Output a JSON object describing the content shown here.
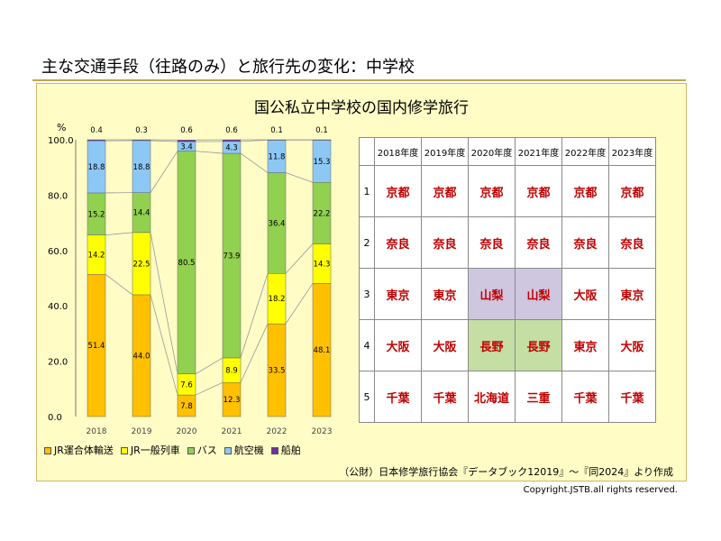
{
  "header": {
    "title": "主な交通手段（往路のみ）と旅行先の変化：中学校"
  },
  "panel": {
    "chart_title": "国公私立中学校の国内修学旅行",
    "source": "（公財）日本修学旅行協会『データブック12019』～『同2024』より作成"
  },
  "footer": {
    "copyright": "Copyright.JSTB.all rights reserved."
  },
  "colors": {
    "jr_charter": "#ffc000",
    "jr_regular": "#ffff00",
    "bus": "#92d050",
    "air": "#8dc8f5",
    "ship": "#7030a0",
    "rank_text": "#c00000",
    "highlight_purple": "#cfc6e0",
    "highlight_green": "#c4dea3"
  },
  "chart_data": {
    "type": "bar",
    "stacked": true,
    "title": "",
    "xlabel": "",
    "ylabel": "%",
    "ylim": [
      0,
      100
    ],
    "yticks": [
      "0.0",
      "20.0",
      "40.0",
      "60.0",
      "80.0",
      "100.0"
    ],
    "categories": [
      "2018",
      "2019",
      "2020",
      "2021",
      "2022",
      "2023"
    ],
    "series": [
      {
        "name": "JR運合体輸送",
        "color": "#ffc000",
        "values": [
          51.4,
          44.0,
          7.8,
          12.3,
          33.5,
          48.1
        ],
        "labels": [
          "51.4",
          "44.0",
          "7.8",
          "12.3",
          "33.5",
          "48.1"
        ]
      },
      {
        "name": "JR一般列車",
        "color": "#ffff00",
        "values": [
          14.2,
          22.5,
          7.6,
          8.9,
          18.2,
          14.3
        ],
        "labels": [
          "14.2",
          "22.5",
          "7.6",
          "8.9",
          "18.2",
          "14.3"
        ]
      },
      {
        "name": "バス",
        "color": "#92d050",
        "values": [
          15.2,
          14.4,
          80.5,
          73.9,
          36.4,
          22.2
        ],
        "labels": [
          "15.2",
          "14.4",
          "80.5",
          "73.9",
          "36.4",
          "22.2"
        ]
      },
      {
        "name": "航空機",
        "color": "#8dc8f5",
        "values": [
          18.8,
          18.8,
          3.4,
          4.3,
          11.8,
          15.3
        ],
        "labels": [
          "18.8",
          "18.8",
          "3.4",
          "4.3",
          "11.8",
          "15.3"
        ]
      },
      {
        "name": "船舶",
        "color": "#7030a0",
        "values": [
          0.4,
          0.3,
          0.6,
          0.6,
          0.1,
          0.1
        ],
        "labels": [
          "0.4",
          "0.3",
          "0.6",
          "0.6",
          "0.1",
          "0.1"
        ]
      }
    ],
    "legend_position": "bottom",
    "grid": false
  },
  "ranking": {
    "years": [
      "2018年度",
      "2019年度",
      "2020年度",
      "2021年度",
      "2022年度",
      "2023年度"
    ],
    "rows": [
      {
        "rank": "1",
        "cells": [
          "京都",
          "京都",
          "京都",
          "京都",
          "京都",
          "京都"
        ]
      },
      {
        "rank": "2",
        "cells": [
          "奈良",
          "奈良",
          "奈良",
          "奈良",
          "奈良",
          "奈良"
        ]
      },
      {
        "rank": "3",
        "cells": [
          "東京",
          "東京",
          "山梨",
          "山梨",
          "大阪",
          "東京"
        ]
      },
      {
        "rank": "4",
        "cells": [
          "大阪",
          "大阪",
          "長野",
          "長野",
          "東京",
          "大阪"
        ]
      },
      {
        "rank": "5",
        "cells": [
          "千葉",
          "千葉",
          "北海道",
          "三重",
          "千葉",
          "千葉"
        ]
      }
    ]
  }
}
